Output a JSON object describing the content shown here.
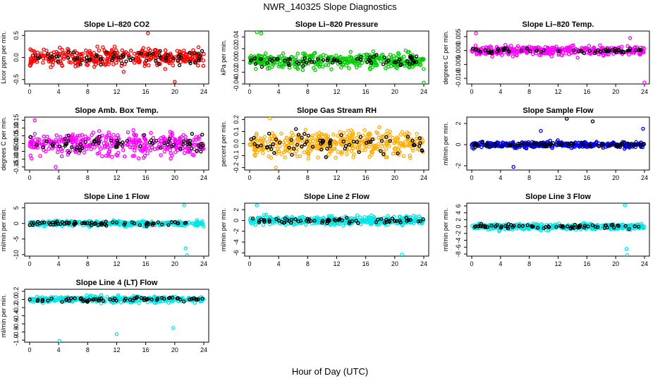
{
  "figure": {
    "title": "NWR_140325  Slope Diagnostics",
    "xlabel": "Hour of Day (UTC)"
  },
  "chart_data": [
    {
      "type": "scatter",
      "title": "Slope Li–820 CO2",
      "ylabel": "Licor ppm per min.",
      "color": "#ff0000",
      "xlim": [
        0,
        24
      ],
      "ylim": [
        -0.6,
        0.6
      ],
      "xticks": [
        0,
        4,
        8,
        12,
        16,
        20,
        24
      ],
      "yticks": [
        -0.5,
        0.0,
        0.5
      ],
      "ytick_labels": [
        "-0.5",
        "0.0",
        "0.5"
      ],
      "spread": 0.2,
      "black_spread": 0.15,
      "outliers": [
        [
          16.3,
          0.55
        ],
        [
          20.0,
          -0.55
        ]
      ]
    },
    {
      "type": "scatter",
      "title": "Slope Li–820 Pressure",
      "ylabel": "kPa per min.",
      "color": "#00cc00",
      "xlim": [
        0,
        24
      ],
      "ylim": [
        -0.04,
        0.05
      ],
      "xticks": [
        0,
        4,
        8,
        12,
        16,
        20,
        24
      ],
      "yticks": [
        -0.04,
        -0.02,
        0.0,
        0.02,
        0.04
      ],
      "ytick_labels": [
        "-0.04",
        "-0.02",
        "0.00",
        "0.02",
        "0.04"
      ],
      "spread": 0.012,
      "black_spread": 0.008,
      "outliers": [
        [
          1.0,
          0.048
        ],
        [
          1.6,
          0.046
        ],
        [
          24.0,
          -0.038
        ]
      ]
    },
    {
      "type": "scatter",
      "title": "Slope Li–820 Temp.",
      "ylabel": "degrees C per min.",
      "color": "#ff00ff",
      "xlim": [
        0,
        24
      ],
      "ylim": [
        -0.012,
        0.007
      ],
      "xticks": [
        0,
        4,
        8,
        12,
        16,
        20,
        24
      ],
      "yticks": [
        -0.01,
        -0.005,
        0.0,
        0.005
      ],
      "ytick_labels": [
        "-0.010",
        "-0.005",
        "0.000",
        "0.005"
      ],
      "spread": 0.0015,
      "black_spread": 0.0008,
      "outliers": [
        [
          0.6,
          0.0062
        ],
        [
          22.0,
          0.0045
        ],
        [
          24.0,
          -0.0115
        ]
      ]
    },
    {
      "type": "scatter",
      "title": "Slope Amb. Box Temp.",
      "ylabel": "degrees C per min.",
      "color": "#ff00ff",
      "xlim": [
        0,
        24
      ],
      "ylim": [
        -0.17,
        0.17
      ],
      "xticks": [
        0,
        4,
        8,
        12,
        16,
        20,
        24
      ],
      "yticks": [
        -0.15,
        -0.1,
        -0.05,
        0.0,
        0.05,
        0.1,
        0.15
      ],
      "ytick_labels": [
        "-0.15",
        "-0.10",
        "-0.05",
        "0.00",
        "0.05",
        "0.10",
        "0.15"
      ],
      "spread": 0.07,
      "black_spread": 0.045,
      "outliers": [
        [
          0.7,
          0.15
        ],
        [
          3.6,
          -0.15
        ]
      ]
    },
    {
      "type": "scatter",
      "title": "Slope Gas Stream RH",
      "ylabel": "percent per min.",
      "color": "#ffaa00",
      "xlim": [
        0,
        24
      ],
      "ylim": [
        -0.22,
        0.22
      ],
      "xticks": [
        0,
        4,
        8,
        12,
        16,
        20,
        24
      ],
      "yticks": [
        -0.2,
        -0.1,
        0.0,
        0.1,
        0.2
      ],
      "ytick_labels": [
        "-0.2",
        "-0.1",
        "0.0",
        "0.1",
        "0.2"
      ],
      "spread": 0.1,
      "black_spread": 0.08,
      "outliers": [
        [
          2.8,
          0.21
        ],
        [
          3.6,
          -0.2
        ]
      ]
    },
    {
      "type": "scatter",
      "title": "Slope Sample Flow",
      "ylabel": "ml/min per min.",
      "color": "#0000ee",
      "xlim": [
        0,
        24
      ],
      "ylim": [
        -2.4,
        2.6
      ],
      "xticks": [
        0,
        4,
        8,
        12,
        16,
        20,
        24
      ],
      "yticks": [
        -2,
        0,
        2
      ],
      "ytick_labels": [
        "-2",
        "0",
        "2"
      ],
      "spread": 0.25,
      "black_spread": 0.2,
      "outliers": [
        [
          5.8,
          -2.1
        ],
        [
          9.6,
          1.3
        ],
        [
          13.2,
          2.45
        ],
        [
          16.8,
          2.2
        ],
        [
          23.8,
          1.5
        ]
      ]
    },
    {
      "type": "scatter",
      "title": "Slope Line 1 Flow",
      "ylabel": "ml/min per min.",
      "color": "#00e5e5",
      "xlim": [
        0,
        24
      ],
      "ylim": [
        -10.5,
        6.5
      ],
      "xticks": [
        0,
        4,
        8,
        12,
        16,
        20,
        24
      ],
      "yticks": [
        -10,
        -5,
        0,
        5
      ],
      "ytick_labels": [
        "-10",
        "-5",
        "0",
        "5"
      ],
      "spread": 0.8,
      "black_spread": 0.6,
      "outliers": [
        [
          21.3,
          5.8
        ],
        [
          21.5,
          -8.0
        ],
        [
          21.7,
          -10.2
        ]
      ]
    },
    {
      "type": "scatter",
      "title": "Slope Line 2 Flow",
      "ylabel": "ml/min per min.",
      "color": "#00e5e5",
      "xlim": [
        0,
        24
      ],
      "ylim": [
        -6.6,
        3.2
      ],
      "xticks": [
        0,
        4,
        8,
        12,
        16,
        20,
        24
      ],
      "yticks": [
        -6,
        -4,
        -2,
        0,
        2
      ],
      "ytick_labels": [
        "-6",
        "-4",
        "-2",
        "0",
        "2"
      ],
      "spread": 0.7,
      "black_spread": 0.5,
      "outliers": [
        [
          1.0,
          2.8
        ],
        [
          21.0,
          -6.3
        ]
      ]
    },
    {
      "type": "scatter",
      "title": "Slope Line 3 Flow",
      "ylabel": "ml/min per min.",
      "color": "#00e5e5",
      "xlim": [
        0,
        24
      ],
      "ylim": [
        -8.6,
        6.8
      ],
      "xticks": [
        0,
        4,
        8,
        12,
        16,
        20,
        24
      ],
      "yticks": [
        -8,
        -6,
        -4,
        -2,
        0,
        2,
        4,
        6
      ],
      "ytick_labels": [
        "-8",
        "-6",
        "-4",
        "-2",
        "0",
        "2",
        "4",
        "6"
      ],
      "spread": 0.8,
      "black_spread": 0.6,
      "outliers": [
        [
          21.3,
          6.2
        ],
        [
          21.5,
          -6.5
        ],
        [
          21.6,
          -8.3
        ]
      ]
    },
    {
      "type": "scatter",
      "title": "Slope Line 4 (LT) Flow",
      "ylabel": "ml/min per min.",
      "color": "#00e5e5",
      "xlim": [
        0,
        24
      ],
      "ylim": [
        -1.05,
        0.25
      ],
      "xticks": [
        0,
        4,
        8,
        12,
        16,
        20,
        24
      ],
      "yticks": [
        -1.0,
        -0.8,
        -0.6,
        -0.4,
        -0.2,
        0.0,
        0.2
      ],
      "ytick_labels": [
        "-1.0",
        "-0.8",
        "-0.6",
        "-0.4",
        "-0.2",
        "0.0",
        "0.2"
      ],
      "spread": 0.07,
      "black_spread": 0.05,
      "outliers": [
        [
          4.1,
          -1.02
        ],
        [
          12.0,
          -0.85
        ],
        [
          19.8,
          -0.7
        ]
      ]
    }
  ]
}
